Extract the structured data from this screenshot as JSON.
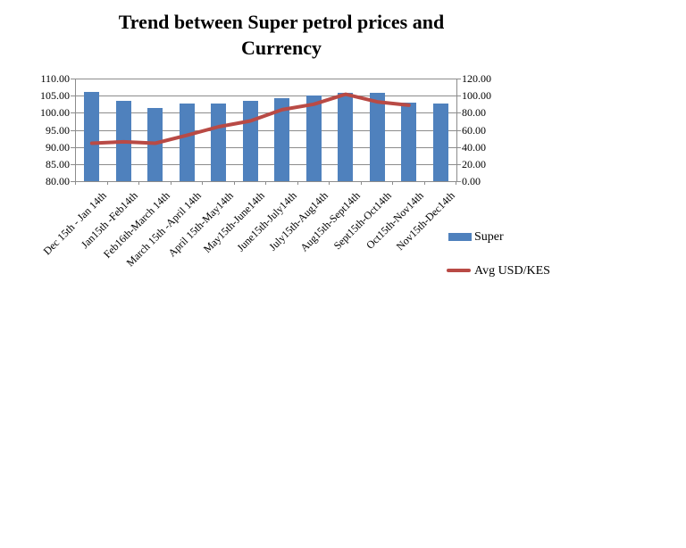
{
  "page": {
    "background": "#ffffff"
  },
  "chart_data": {
    "type": "combo-bar-line",
    "title": "Trend between Super petrol prices and Currency",
    "title_lines": [
      "Trend between Super petrol prices and",
      "Currency"
    ],
    "categories": [
      "Dec 15th - Jan 14th",
      "Jan15th -Feb14th",
      "Feb16th-March 14th",
      "March 15th -April 14th",
      "April 15th-May14th",
      "May15th-June14th",
      "June15th-July14th",
      "July15th-Aug14th",
      "Aug15th-Sept14th",
      "Sept15th-Oct14th",
      "Oct15th-Nov14th",
      "Nov15th-Dec14th"
    ],
    "series": [
      {
        "name": "Super",
        "type": "bar",
        "axis": "right",
        "color": "#4f81bd",
        "values": [
          104.0,
          94.0,
          85.5,
          90.3,
          90.3,
          93.5,
          97.5,
          100.0,
          103.5,
          103.8,
          92.0,
          90.3
        ]
      },
      {
        "name": "Avg USD/KES",
        "type": "line",
        "axis": "left",
        "color": "#b94a45",
        "values": [
          91.1,
          91.5,
          91.1,
          93.4,
          95.9,
          97.6,
          100.9,
          102.5,
          105.4,
          103.2,
          102.2,
          null
        ]
      }
    ],
    "axes": {
      "left": {
        "min": 80,
        "max": 110,
        "step": 5,
        "tick_labels": [
          "110.00",
          "105.00",
          "100.00",
          "95.00",
          "90.00",
          "85.00",
          "80.00"
        ]
      },
      "right": {
        "min": 0,
        "max": 120,
        "step": 20,
        "tick_labels": [
          "120.00",
          "100.00",
          "80.00",
          "60.00",
          "40.00",
          "20.00",
          "0.00"
        ]
      }
    },
    "grid": true,
    "legend_position": "right"
  },
  "colors": {
    "bar": "#4f81bd",
    "line": "#b94a45",
    "gridline": "#8c8c8c",
    "text": "#000000",
    "background": "#ffffff"
  }
}
